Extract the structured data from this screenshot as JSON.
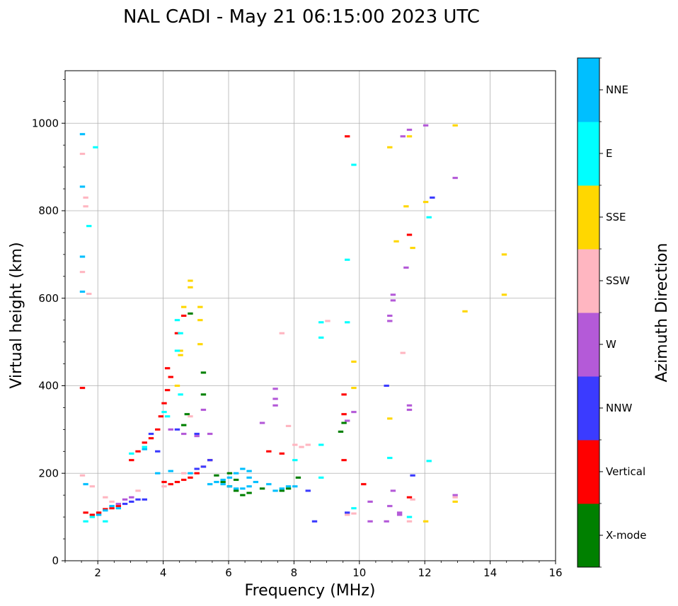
{
  "chart_data": {
    "type": "scatter",
    "title": "NAL CADI - May 21 06:15:00 2023 UTC",
    "xlabel": "Frequency (MHz)",
    "ylabel": "Virtual height (km)",
    "xlim": [
      1,
      16
    ],
    "ylim": [
      0,
      1120
    ],
    "xticks": [
      2,
      4,
      6,
      8,
      10,
      12,
      14,
      16
    ],
    "yticks": [
      0,
      200,
      400,
      600,
      800,
      1000
    ],
    "grid": true,
    "colorbar": {
      "label": "Azimuth Direction",
      "categories": [
        "X-mode",
        "Vertical",
        "NNW",
        "W",
        "SSW",
        "SSE",
        "E",
        "NNE"
      ],
      "colors": [
        "#008000",
        "#ff0000",
        "#3b3bff",
        "#b45ad8",
        "#ffb6c1",
        "#ffd700",
        "#00ffff",
        "#00bfff"
      ]
    },
    "series": [
      {
        "name": "X-mode",
        "color": "#008000",
        "points": [
          [
            5.6,
            195
          ],
          [
            5.8,
            180
          ],
          [
            6.0,
            170
          ],
          [
            6.2,
            160
          ],
          [
            6.4,
            150
          ],
          [
            6.6,
            155
          ],
          [
            7.0,
            165
          ],
          [
            7.6,
            160
          ],
          [
            7.8,
            165
          ],
          [
            8.1,
            190
          ],
          [
            9.4,
            295
          ],
          [
            9.5,
            315
          ],
          [
            4.6,
            310
          ],
          [
            4.7,
            335
          ],
          [
            5.2,
            430
          ],
          [
            5.2,
            380
          ],
          [
            4.8,
            565
          ],
          [
            6.2,
            185
          ],
          [
            6.0,
            200
          ]
        ]
      },
      {
        "name": "Vertical",
        "color": "#ff0000",
        "points": [
          [
            1.5,
            395
          ],
          [
            1.6,
            110
          ],
          [
            1.8,
            105
          ],
          [
            2.0,
            110
          ],
          [
            2.2,
            118
          ],
          [
            2.4,
            120
          ],
          [
            2.6,
            125
          ],
          [
            3.0,
            230
          ],
          [
            3.2,
            250
          ],
          [
            3.4,
            270
          ],
          [
            3.6,
            280
          ],
          [
            3.8,
            300
          ],
          [
            3.9,
            330
          ],
          [
            4.0,
            360
          ],
          [
            4.1,
            390
          ],
          [
            4.2,
            420
          ],
          [
            4.1,
            440
          ],
          [
            4.4,
            520
          ],
          [
            4.6,
            560
          ],
          [
            4.0,
            180
          ],
          [
            4.2,
            175
          ],
          [
            4.4,
            180
          ],
          [
            4.6,
            185
          ],
          [
            4.8,
            190
          ],
          [
            5.0,
            200
          ],
          [
            5.2,
            215
          ],
          [
            5.4,
            230
          ],
          [
            7.2,
            250
          ],
          [
            7.6,
            245
          ],
          [
            9.5,
            380
          ],
          [
            9.5,
            335
          ],
          [
            9.5,
            230
          ],
          [
            9.6,
            970
          ],
          [
            10.1,
            175
          ],
          [
            11.5,
            745
          ],
          [
            11.5,
            145
          ]
        ]
      },
      {
        "name": "NNW",
        "color": "#3b3bff",
        "points": [
          [
            2.8,
            130
          ],
          [
            3.0,
            135
          ],
          [
            3.2,
            140
          ],
          [
            3.4,
            140
          ],
          [
            3.8,
            250
          ],
          [
            5.0,
            210
          ],
          [
            5.2,
            215
          ],
          [
            5.4,
            230
          ],
          [
            3.6,
            290
          ],
          [
            4.4,
            300
          ],
          [
            5.0,
            290
          ],
          [
            8.4,
            160
          ],
          [
            8.6,
            90
          ],
          [
            9.6,
            110
          ],
          [
            10.8,
            400
          ],
          [
            11.6,
            195
          ],
          [
            12.2,
            830
          ]
        ]
      },
      {
        "name": "W",
        "color": "#b45ad8",
        "points": [
          [
            2.6,
            130
          ],
          [
            2.8,
            140
          ],
          [
            3.0,
            145
          ],
          [
            4.2,
            300
          ],
          [
            4.6,
            290
          ],
          [
            5.0,
            285
          ],
          [
            5.2,
            345
          ],
          [
            5.4,
            290
          ],
          [
            7.0,
            315
          ],
          [
            7.4,
            355
          ],
          [
            7.4,
            370
          ],
          [
            7.4,
            393
          ],
          [
            9.6,
            320
          ],
          [
            9.8,
            340
          ],
          [
            10.3,
            90
          ],
          [
            10.3,
            135
          ],
          [
            10.8,
            90
          ],
          [
            10.9,
            125
          ],
          [
            10.9,
            560
          ],
          [
            10.9,
            548
          ],
          [
            11.0,
            595
          ],
          [
            11.0,
            608
          ],
          [
            11.2,
            105
          ],
          [
            11.2,
            110
          ],
          [
            11.3,
            970
          ],
          [
            11.4,
            670
          ],
          [
            11.5,
            985
          ],
          [
            11.5,
            345
          ],
          [
            11.5,
            355
          ],
          [
            11.0,
            160
          ],
          [
            12.0,
            995
          ],
          [
            12.9,
            875
          ],
          [
            12.9,
            150
          ]
        ]
      },
      {
        "name": "SSW",
        "color": "#ffb6c1",
        "points": [
          [
            1.5,
            930
          ],
          [
            1.5,
            660
          ],
          [
            1.5,
            195
          ],
          [
            1.6,
            830
          ],
          [
            1.6,
            810
          ],
          [
            1.7,
            610
          ],
          [
            1.8,
            170
          ],
          [
            2.2,
            145
          ],
          [
            2.4,
            135
          ],
          [
            3.2,
            160
          ],
          [
            4.0,
            170
          ],
          [
            4.6,
            200
          ],
          [
            4.8,
            330
          ],
          [
            7.6,
            520
          ],
          [
            7.8,
            308
          ],
          [
            8.0,
            265
          ],
          [
            8.2,
            260
          ],
          [
            8.4,
            265
          ],
          [
            9.0,
            548
          ],
          [
            9.6,
            105
          ],
          [
            9.8,
            108
          ],
          [
            11.3,
            475
          ],
          [
            11.5,
            90
          ],
          [
            11.6,
            140
          ],
          [
            12.9,
            145
          ]
        ]
      },
      {
        "name": "SSE",
        "color": "#ffd700",
        "points": [
          [
            4.4,
            400
          ],
          [
            4.5,
            480
          ],
          [
            4.5,
            470
          ],
          [
            4.6,
            580
          ],
          [
            4.8,
            640
          ],
          [
            4.8,
            625
          ],
          [
            5.1,
            495
          ],
          [
            5.1,
            580
          ],
          [
            5.1,
            550
          ],
          [
            9.8,
            455
          ],
          [
            9.8,
            395
          ],
          [
            10.9,
            945
          ],
          [
            10.9,
            325
          ],
          [
            11.1,
            730
          ],
          [
            11.4,
            810
          ],
          [
            11.5,
            970
          ],
          [
            11.6,
            715
          ],
          [
            12.0,
            820
          ],
          [
            12.0,
            90
          ],
          [
            12.9,
            995
          ],
          [
            12.9,
            135
          ],
          [
            13.2,
            570
          ],
          [
            14.4,
            700
          ],
          [
            14.4,
            608
          ]
        ]
      },
      {
        "name": "E",
        "color": "#00ffff",
        "points": [
          [
            1.6,
            90
          ],
          [
            1.8,
            100
          ],
          [
            2.2,
            90
          ],
          [
            3.0,
            245
          ],
          [
            3.4,
            260
          ],
          [
            4.0,
            340
          ],
          [
            4.1,
            330
          ],
          [
            4.4,
            550
          ],
          [
            4.4,
            480
          ],
          [
            4.5,
            380
          ],
          [
            4.5,
            520
          ],
          [
            1.7,
            765
          ],
          [
            1.9,
            945
          ],
          [
            8.0,
            230
          ],
          [
            8.8,
            265
          ],
          [
            8.8,
            545
          ],
          [
            8.8,
            510
          ],
          [
            8.8,
            190
          ],
          [
            9.6,
            545
          ],
          [
            9.6,
            688
          ],
          [
            9.8,
            905
          ],
          [
            9.8,
            120
          ],
          [
            10.9,
            235
          ],
          [
            11.5,
            100
          ],
          [
            12.1,
            785
          ],
          [
            12.1,
            228
          ]
        ]
      },
      {
        "name": "NNE",
        "color": "#00bfff",
        "points": [
          [
            1.5,
            975
          ],
          [
            1.5,
            855
          ],
          [
            1.5,
            695
          ],
          [
            1.5,
            615
          ],
          [
            1.6,
            175
          ],
          [
            2.0,
            105
          ],
          [
            2.2,
            115
          ],
          [
            2.4,
            125
          ],
          [
            2.6,
            120
          ],
          [
            3.4,
            255
          ],
          [
            3.8,
            200
          ],
          [
            4.2,
            205
          ],
          [
            4.8,
            200
          ],
          [
            5.4,
            175
          ],
          [
            5.6,
            180
          ],
          [
            5.8,
            175
          ],
          [
            6.0,
            170
          ],
          [
            6.2,
            165
          ],
          [
            6.4,
            165
          ],
          [
            6.6,
            170
          ],
          [
            6.8,
            180
          ],
          [
            6.2,
            200
          ],
          [
            6.4,
            210
          ],
          [
            6.6,
            205
          ],
          [
            6.6,
            190
          ],
          [
            7.2,
            175
          ],
          [
            7.4,
            160
          ],
          [
            7.6,
            165
          ],
          [
            7.8,
            170
          ],
          [
            8.0,
            170
          ],
          [
            6.0,
            190
          ],
          [
            5.8,
            185
          ]
        ]
      }
    ]
  }
}
